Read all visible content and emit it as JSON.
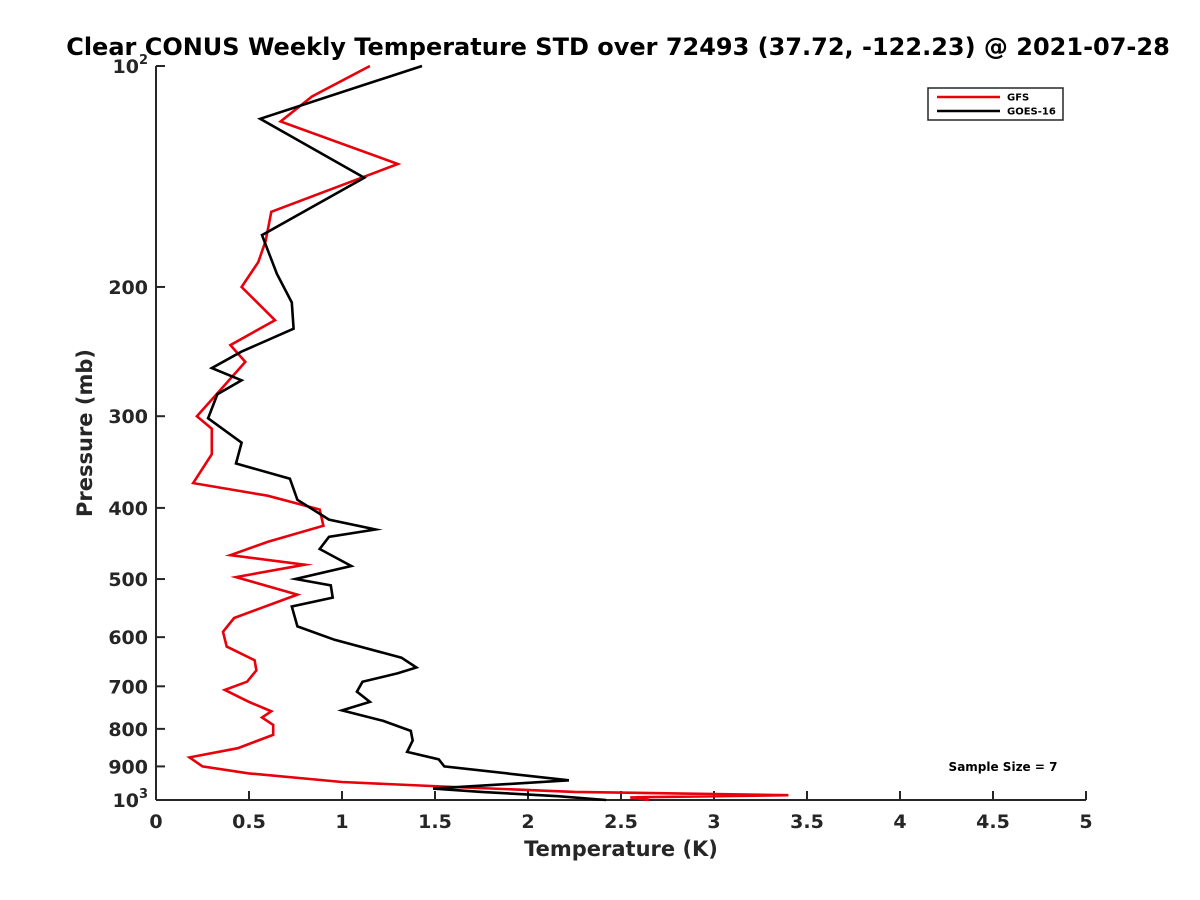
{
  "chart_data": {
    "type": "line",
    "title": "Clear CONUS Weekly Temperature STD over 72493 (37.72, -122.23) @ 2021-07-28",
    "xlabel": "Temperature (K)",
    "ylabel": "Pressure (mb)",
    "xlim": [
      0,
      5
    ],
    "ylim": [
      100,
      1000
    ],
    "yscale": "log",
    "y_reversed": true,
    "x_ticks": [
      0,
      0.5,
      1,
      1.5,
      2,
      2.5,
      3,
      3.5,
      4,
      4.5,
      5
    ],
    "x_tick_labels": [
      "0",
      "0.5",
      "1",
      "1.5",
      "2",
      "2.5",
      "3",
      "3.5",
      "4",
      "4.5",
      "5"
    ],
    "y_ticks": [
      {
        "value": 100,
        "base": "10",
        "exp": "2"
      },
      {
        "value": 200,
        "label": "200"
      },
      {
        "value": 300,
        "label": "300"
      },
      {
        "value": 400,
        "label": "400"
      },
      {
        "value": 500,
        "label": "500"
      },
      {
        "value": 600,
        "label": "600"
      },
      {
        "value": 700,
        "label": "700"
      },
      {
        "value": 800,
        "label": "800"
      },
      {
        "value": 900,
        "label": "900"
      },
      {
        "value": 1000,
        "base": "10",
        "exp": "3"
      }
    ],
    "legend_position": "top-right",
    "grid": false,
    "annotation": "Sample Size = 7",
    "series": [
      {
        "name": "GFS",
        "color": "#e8000b",
        "points": [
          [
            1.15,
            100
          ],
          [
            0.84,
            110
          ],
          [
            0.67,
            119
          ],
          [
            1.3,
            136
          ],
          [
            0.62,
            158
          ],
          [
            0.59,
            173
          ],
          [
            0.55,
            185
          ],
          [
            0.46,
            200
          ],
          [
            0.64,
            222
          ],
          [
            0.4,
            240
          ],
          [
            0.48,
            253
          ],
          [
            0.37,
            272
          ],
          [
            0.22,
            300
          ],
          [
            0.3,
            312
          ],
          [
            0.3,
            338
          ],
          [
            0.2,
            370
          ],
          [
            0.6,
            385
          ],
          [
            0.88,
            402
          ],
          [
            0.9,
            423
          ],
          [
            0.6,
            445
          ],
          [
            0.4,
            464
          ],
          [
            0.8,
            478
          ],
          [
            0.43,
            497
          ],
          [
            0.76,
            525
          ],
          [
            0.42,
            565
          ],
          [
            0.36,
            590
          ],
          [
            0.38,
            618
          ],
          [
            0.53,
            645
          ],
          [
            0.54,
            666
          ],
          [
            0.49,
            690
          ],
          [
            0.37,
            708
          ],
          [
            0.5,
            735
          ],
          [
            0.62,
            757
          ],
          [
            0.57,
            772
          ],
          [
            0.63,
            790
          ],
          [
            0.63,
            815
          ],
          [
            0.44,
            850
          ],
          [
            0.18,
            875
          ],
          [
            0.25,
            900
          ],
          [
            0.5,
            920
          ],
          [
            1.0,
            945
          ],
          [
            1.6,
            960
          ],
          [
            2.25,
            975
          ],
          [
            3.4,
            985
          ],
          [
            2.55,
            992
          ],
          [
            2.65,
            1000
          ]
        ]
      },
      {
        "name": "GOES-16",
        "color": "#000000",
        "points": [
          [
            1.43,
            100
          ],
          [
            0.56,
            118
          ],
          [
            1.12,
            142
          ],
          [
            0.57,
            170
          ],
          [
            0.65,
            192
          ],
          [
            0.73,
            210
          ],
          [
            0.74,
            228
          ],
          [
            0.46,
            245
          ],
          [
            0.3,
            258
          ],
          [
            0.46,
            268
          ],
          [
            0.33,
            280
          ],
          [
            0.28,
            302
          ],
          [
            0.46,
            326
          ],
          [
            0.43,
            348
          ],
          [
            0.72,
            365
          ],
          [
            0.76,
            390
          ],
          [
            0.93,
            415
          ],
          [
            1.18,
            428
          ],
          [
            0.93,
            438
          ],
          [
            0.88,
            455
          ],
          [
            1.05,
            480
          ],
          [
            0.75,
            500
          ],
          [
            0.94,
            510
          ],
          [
            0.95,
            530
          ],
          [
            0.73,
            545
          ],
          [
            0.76,
            580
          ],
          [
            0.96,
            605
          ],
          [
            1.32,
            640
          ],
          [
            1.4,
            660
          ],
          [
            1.3,
            672
          ],
          [
            1.11,
            690
          ],
          [
            1.08,
            712
          ],
          [
            1.15,
            735
          ],
          [
            1.0,
            755
          ],
          [
            1.22,
            780
          ],
          [
            1.37,
            805
          ],
          [
            1.38,
            830
          ],
          [
            1.35,
            860
          ],
          [
            1.52,
            880
          ],
          [
            1.55,
            900
          ],
          [
            2.22,
            940
          ],
          [
            1.49,
            965
          ],
          [
            1.75,
            975
          ],
          [
            2.16,
            988
          ],
          [
            2.42,
            1000
          ]
        ]
      }
    ]
  }
}
